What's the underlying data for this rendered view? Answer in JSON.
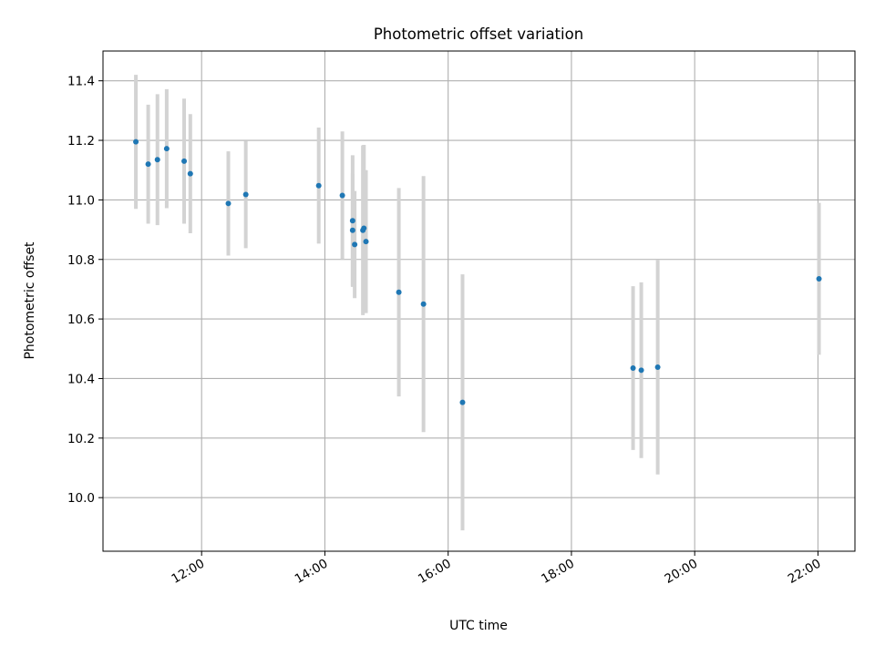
{
  "chart_data": {
    "type": "scatter",
    "title": "Photometric offset variation",
    "xlabel": "UTC time",
    "ylabel": "Photometric offset",
    "xlim": [
      "10:24",
      "22:36"
    ],
    "ylim": [
      9.82,
      11.5
    ],
    "grid": true,
    "colors": {
      "marker": "#1f77b4",
      "errorbar": "#d3d3d3",
      "grid": "#b0b0b0",
      "frame": "#000000"
    },
    "x_ticks": [
      {
        "value": "12:00",
        "label": "12:00"
      },
      {
        "value": "14:00",
        "label": "14:00"
      },
      {
        "value": "16:00",
        "label": "16:00"
      },
      {
        "value": "18:00",
        "label": "18:00"
      },
      {
        "value": "20:00",
        "label": "20:00"
      },
      {
        "value": "22:00",
        "label": "22:00"
      }
    ],
    "y_ticks": [
      {
        "value": 10.0,
        "label": "10.0"
      },
      {
        "value": 10.2,
        "label": "10.2"
      },
      {
        "value": 10.4,
        "label": "10.4"
      },
      {
        "value": 10.6,
        "label": "10.6"
      },
      {
        "value": 10.8,
        "label": "10.8"
      },
      {
        "value": 11.0,
        "label": "11.0"
      },
      {
        "value": 11.2,
        "label": "11.2"
      },
      {
        "value": 11.4,
        "label": "11.4"
      }
    ],
    "points": [
      {
        "x": "10:56",
        "y": 11.195,
        "err": 0.225
      },
      {
        "x": "11:08",
        "y": 11.12,
        "err": 0.2
      },
      {
        "x": "11:17",
        "y": 11.135,
        "err": 0.22
      },
      {
        "x": "11:26",
        "y": 11.172,
        "err": 0.2
      },
      {
        "x": "11:43",
        "y": 11.13,
        "err": 0.21
      },
      {
        "x": "11:49",
        "y": 11.088,
        "err": 0.2
      },
      {
        "x": "12:26",
        "y": 10.988,
        "err": 0.175
      },
      {
        "x": "12:43",
        "y": 11.018,
        "err": 0.18
      },
      {
        "x": "13:54",
        "y": 11.048,
        "err": 0.195
      },
      {
        "x": "14:17",
        "y": 11.015,
        "err": 0.215
      },
      {
        "x": "14:27",
        "y": 10.93,
        "err": 0.22
      },
      {
        "x": "14:27",
        "y": 10.898,
        "err": 0.19
      },
      {
        "x": "14:29",
        "y": 10.85,
        "err": 0.18
      },
      {
        "x": "14:37",
        "y": 10.898,
        "err": 0.285
      },
      {
        "x": "14:38",
        "y": 10.905,
        "err": 0.28
      },
      {
        "x": "14:40",
        "y": 10.86,
        "err": 0.24
      },
      {
        "x": "15:12",
        "y": 10.69,
        "err": 0.35
      },
      {
        "x": "15:36",
        "y": 10.65,
        "err": 0.43
      },
      {
        "x": "16:14",
        "y": 10.32,
        "err": 0.43
      },
      {
        "x": "19:00",
        "y": 10.435,
        "err": 0.275
      },
      {
        "x": "19:08",
        "y": 10.428,
        "err": 0.295
      },
      {
        "x": "19:24",
        "y": 10.438,
        "err": 0.36
      },
      {
        "x": "22:01",
        "y": 10.735,
        "err": 0.255
      }
    ]
  }
}
